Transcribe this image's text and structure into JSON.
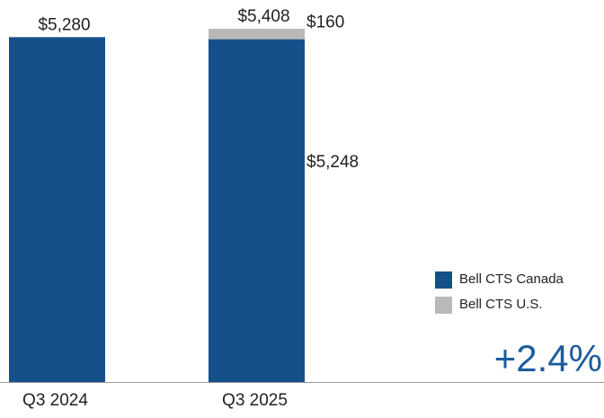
{
  "chart_data": {
    "type": "stacked_bar",
    "categories": [
      "Q3 2024",
      "Q3 2025"
    ],
    "series": [
      {
        "name": "Bell CTS Canada",
        "color": "#15508b",
        "values": [
          5280,
          5248
        ],
        "value_labels": [
          null,
          "$5,248"
        ]
      },
      {
        "name": "Bell CTS U.S.",
        "color": "#b9b9b9",
        "values": [
          null,
          160
        ],
        "value_labels": [
          null,
          "$160"
        ]
      }
    ],
    "totals": [
      5280,
      5408
    ],
    "total_labels": [
      "$5,280",
      "$5,408"
    ],
    "annotation": "+2.4%"
  }
}
